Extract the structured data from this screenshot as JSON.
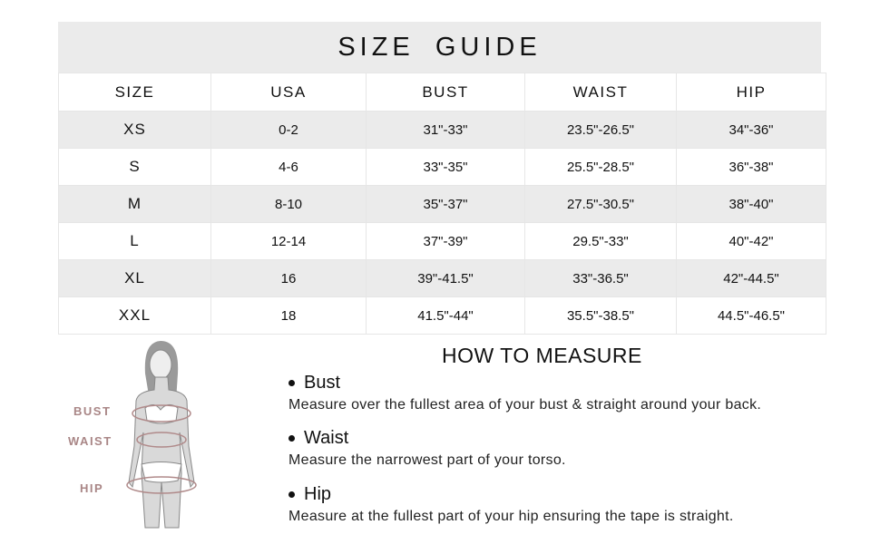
{
  "title": "SIZE GUIDE",
  "table": {
    "headers": [
      "SIZE",
      "USA",
      "BUST",
      "WAIST",
      "HIP"
    ],
    "rows": [
      [
        "XS",
        "0-2",
        "31\"-33\"",
        "23.5\"-26.5\"",
        "34\"-36\""
      ],
      [
        "S",
        "4-6",
        "33\"-35\"",
        "25.5\"-28.5\"",
        "36\"-38\""
      ],
      [
        "M",
        "8-10",
        "35\"-37\"",
        "27.5\"-30.5\"",
        "38\"-40\""
      ],
      [
        "L",
        "12-14",
        "37\"-39\"",
        "29.5\"-33\"",
        "40\"-42\""
      ],
      [
        "XL",
        "16",
        "39\"-41.5\"",
        "33\"-36.5\"",
        "42\"-44.5\""
      ],
      [
        "XXL",
        "18",
        "41.5\"-44\"",
        "35.5\"-38.5\"",
        "44.5\"-46.5\""
      ]
    ]
  },
  "figure_labels": {
    "bust": "BUST",
    "waist": "WAIST",
    "hip": "HIP"
  },
  "how_to": {
    "title": "HOW TO MEASURE",
    "items": [
      {
        "heading": "Bust",
        "text": "Measure over the fullest area of your bust & straight around your back."
      },
      {
        "heading": "Waist",
        "text": "Measure the narrowest part of your torso."
      },
      {
        "heading": "Hip",
        "text": "Measure at the fullest part of your hip ensuring the tape is straight."
      }
    ]
  },
  "colors": {
    "band": "#ebebeb",
    "accent": "#a98686"
  }
}
